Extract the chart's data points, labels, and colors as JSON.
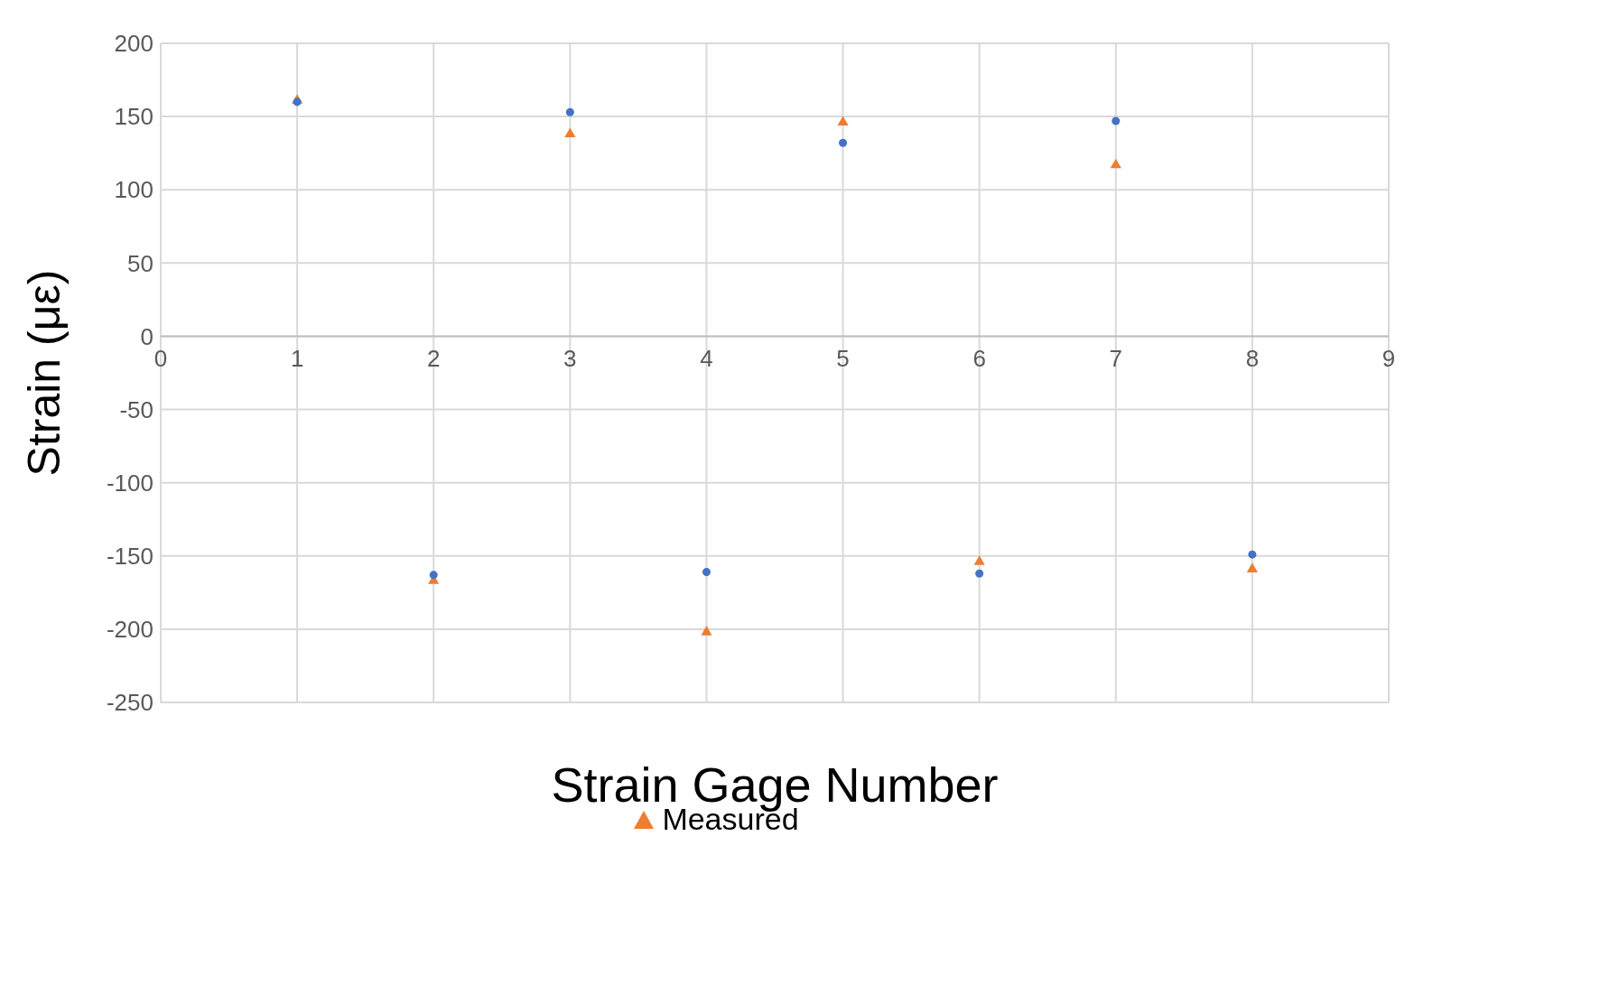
{
  "chart_data": {
    "type": "scatter",
    "xlabel": "Strain Gage Number",
    "ylabel": "Strain (με)",
    "x": [
      1,
      2,
      3,
      4,
      5,
      6,
      7,
      8
    ],
    "series": [
      {
        "color": "#4472c4",
        "marker": "circle",
        "values": [
          160,
          -163,
          153,
          -161,
          132,
          -162,
          147,
          -149
        ]
      },
      {
        "name": "Measured",
        "color": "#ed7d31",
        "marker": "triangle",
        "values": [
          161,
          -167,
          138,
          -202,
          146,
          -154,
          117,
          -159
        ]
      }
    ],
    "xlim": [
      0,
      9
    ],
    "xticks": [
      0,
      1,
      2,
      3,
      4,
      5,
      6,
      7,
      8,
      9
    ],
    "ylim": [
      -250,
      200
    ],
    "yticks": [
      -250,
      -200,
      -150,
      -100,
      -50,
      0,
      50,
      100,
      150,
      200
    ],
    "grid": true,
    "legend": "bottom"
  }
}
